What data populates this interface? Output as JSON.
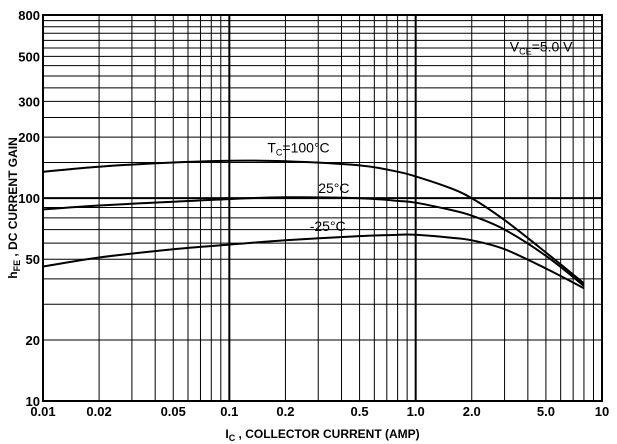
{
  "chart_data": {
    "type": "line",
    "x_scale": "log",
    "y_scale": "log",
    "xlim": [
      0.01,
      10
    ],
    "ylim": [
      10,
      800
    ],
    "x_ticks": [
      {
        "value": 0.01,
        "label": "0.01"
      },
      {
        "value": 0.02,
        "label": "0.02"
      },
      {
        "value": 0.05,
        "label": "0.05"
      },
      {
        "value": 0.1,
        "label": "0.1"
      },
      {
        "value": 0.2,
        "label": "0.2"
      },
      {
        "value": 0.5,
        "label": "0.5"
      },
      {
        "value": 1.0,
        "label": "1.0"
      },
      {
        "value": 2.0,
        "label": "2.0"
      },
      {
        "value": 5.0,
        "label": "5.0"
      },
      {
        "value": 10,
        "label": "10"
      }
    ],
    "y_ticks": [
      {
        "value": 10,
        "label": "10"
      },
      {
        "value": 20,
        "label": "20"
      },
      {
        "value": 50,
        "label": "50"
      },
      {
        "value": 100,
        "label": "100"
      },
      {
        "value": 200,
        "label": "200"
      },
      {
        "value": 300,
        "label": "300"
      },
      {
        "value": 500,
        "label": "500"
      },
      {
        "value": 800,
        "label": "800"
      }
    ],
    "grid": true,
    "xlabel": {
      "main": "I",
      "sub": "C",
      "rest": " , COLLECTOR CURRENT (AMP)"
    },
    "ylabel": {
      "main": "h",
      "sub": "FE",
      "rest": " , DC CURRENT GAIN"
    },
    "condition": {
      "main": "V",
      "sub": "CE",
      "rest": "=5.0 V"
    },
    "series": [
      {
        "name": {
          "main": "T",
          "sub": "C",
          "rest": "=100°C"
        },
        "x": [
          0.01,
          0.02,
          0.05,
          0.1,
          0.2,
          0.5,
          0.8,
          1.0,
          1.5,
          2.0,
          3.0,
          5.0,
          8.0
        ],
        "y": [
          135,
          143,
          150,
          153,
          152,
          145,
          135,
          128,
          113,
          100,
          78,
          54,
          38
        ]
      },
      {
        "name": {
          "main": "25°C",
          "sub": "",
          "rest": ""
        },
        "x": [
          0.01,
          0.02,
          0.05,
          0.1,
          0.2,
          0.5,
          0.8,
          1.0,
          1.5,
          2.0,
          3.0,
          5.0,
          8.0
        ],
        "y": [
          88,
          92,
          96,
          99,
          101,
          100,
          97,
          95,
          88,
          82,
          70,
          52,
          37
        ]
      },
      {
        "name": {
          "main": "-25°C",
          "sub": "",
          "rest": ""
        },
        "x": [
          0.01,
          0.02,
          0.05,
          0.1,
          0.2,
          0.5,
          0.8,
          1.0,
          1.5,
          2.0,
          3.0,
          5.0,
          8.0
        ],
        "y": [
          46,
          51,
          56,
          59,
          62,
          65,
          66,
          66,
          64,
          62,
          56,
          45,
          36
        ]
      }
    ]
  }
}
